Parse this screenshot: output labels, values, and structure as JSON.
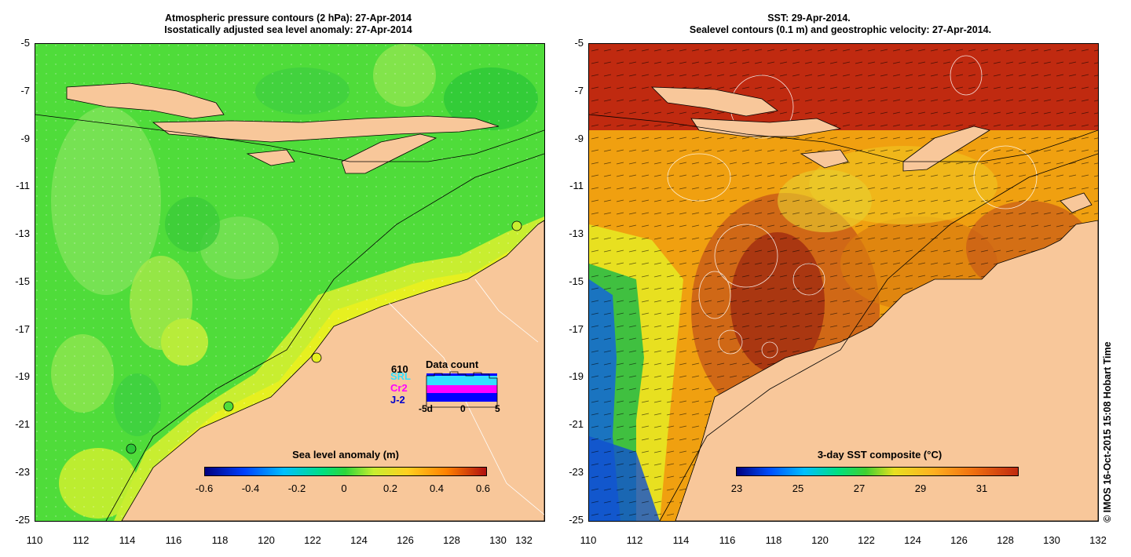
{
  "left_panel": {
    "title_line1": "Atmospheric pressure contours (2 hPa): 27-Apr-2014",
    "title_line2": "Isostatically adjusted sea level anomaly: 27-Apr-2014",
    "colorbar_title": "Sea level anomaly (m)",
    "colorbar_ticks": [
      "-0.6",
      "-0.4",
      "-0.2",
      "0",
      "0.2",
      "0.4",
      "0.6"
    ],
    "data_count": {
      "title": "Data count",
      "labels": [
        "610",
        "SRL",
        "Cr2",
        "J-2"
      ],
      "axis": [
        "-5d",
        "0",
        "5"
      ]
    }
  },
  "right_panel": {
    "title_line1": "SST: 29-Apr-2014.",
    "title_line2": "Sealevel contours (0.1 m) and geostrophic velocity: 27-Apr-2014.",
    "colorbar_title": "3-day SST composite (°C)",
    "colorbar_ticks": [
      "23",
      "25",
      "27",
      "29",
      "31"
    ]
  },
  "y_ticks": [
    "-5",
    "-7",
    "-9",
    "-11",
    "-13",
    "-15",
    "-17",
    "-19",
    "-21",
    "-23",
    "-25"
  ],
  "x_ticks": [
    "110",
    "112",
    "114",
    "116",
    "118",
    "120",
    "122",
    "124",
    "126",
    "128",
    "130",
    "132"
  ],
  "credit": "© IMOS 16-Oct-2015 15:08 Hobart Time",
  "colors": {
    "land": "#f8c79a",
    "slev_green": "#4fdc3a",
    "sst_orange": "#f0a010",
    "sst_red": "#c02a10"
  }
}
